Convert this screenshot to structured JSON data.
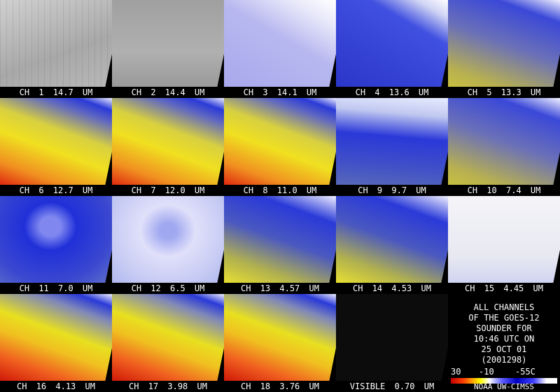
{
  "panels": [
    {
      "label": "CH 1 14.7 UM"
    },
    {
      "label": "CH 2 14.4 UM"
    },
    {
      "label": "CH 3 14.1 UM"
    },
    {
      "label": "CH 4 13.6 UM"
    },
    {
      "label": "CH 5 13.3 UM"
    },
    {
      "label": "CH 6 12.7 UM"
    },
    {
      "label": "CH 7 12.0 UM"
    },
    {
      "label": "CH 8 11.0 UM"
    },
    {
      "label": "CH 9 9.7 UM"
    },
    {
      "label": "CH 10 7.4 UM"
    },
    {
      "label": "CH 11 7.0 UM"
    },
    {
      "label": "CH 12 6.5 UM"
    },
    {
      "label": "CH 13 4.57 UM"
    },
    {
      "label": "CH 14 4.53 UM"
    },
    {
      "label": "CH 15 4.45 UM"
    },
    {
      "label": "CH 16 4.13 UM"
    },
    {
      "label": "CH 17 3.98 UM"
    },
    {
      "label": "CH 18 3.76 UM"
    },
    {
      "label": "VISIBLE 0.70 UM"
    }
  ],
  "info": {
    "lines": [
      "ALL CHANNELS",
      "OF THE GOES-12",
      "SOUNDER FOR",
      "10:46 UTC ON",
      "25 OCT 01",
      "(2001298)"
    ],
    "scale_labels": [
      "30",
      "-10",
      "-55C"
    ],
    "credit": "NOAA UW-CIMSS"
  }
}
